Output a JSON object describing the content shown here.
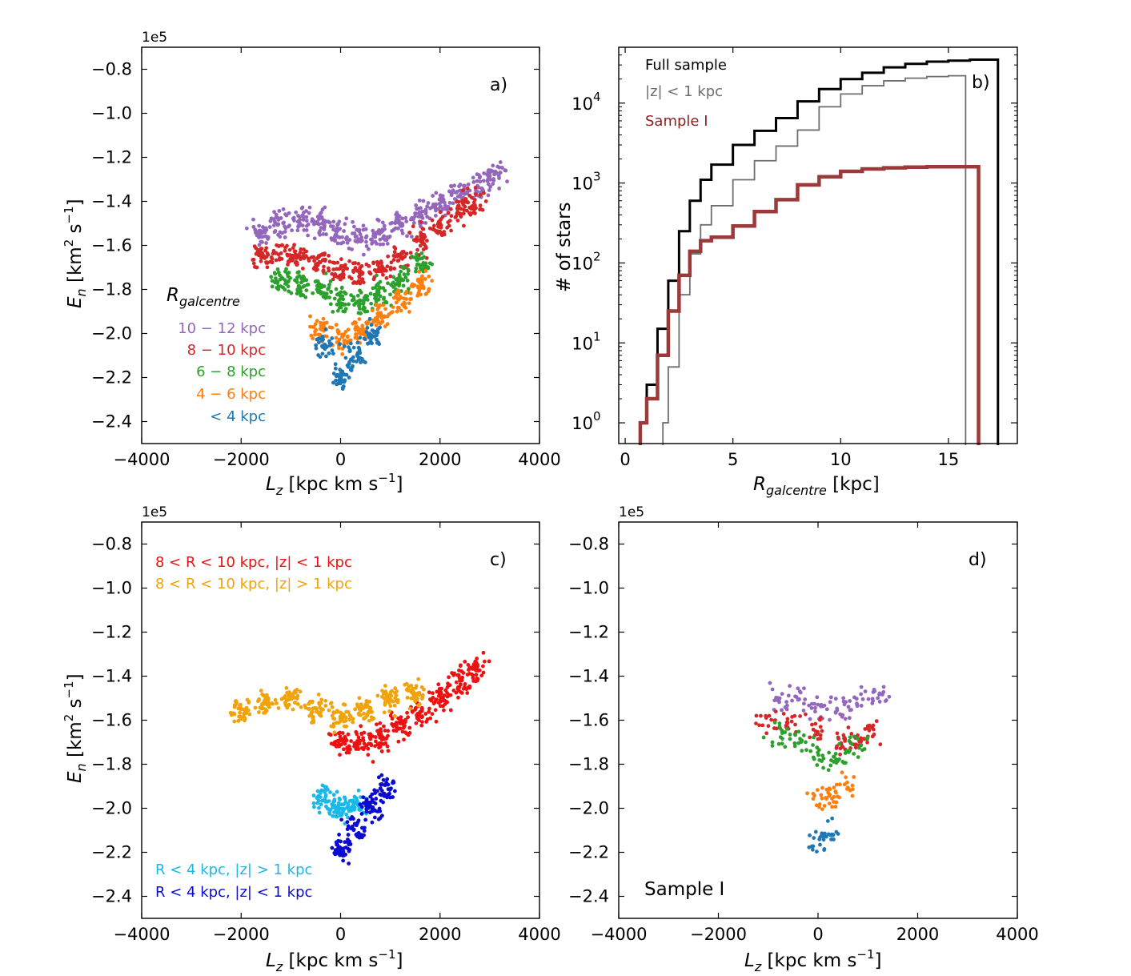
{
  "chart_data": [
    {
      "id": "a",
      "type": "scatter",
      "panel_label": "a)",
      "offset_text": "1e5",
      "xlabel": "L",
      "xlabel_sub": "z",
      "xlabel_units": " [kpc km s",
      "xlabel_exp": "−1",
      "ylabel": "E",
      "ylabel_sub": "n",
      "ylabel_units": " [km",
      "ylabel_exp": "−1",
      "xlim": [
        -4000,
        4000
      ],
      "ylim": [
        -2.5,
        -0.7
      ],
      "xticks": [
        -4000,
        -2000,
        0,
        2000,
        4000
      ],
      "xticklabels": [
        "−4000",
        "−2000",
        "0",
        "2000",
        "4000"
      ],
      "yticks": [
        -2.4,
        -2.2,
        -2.0,
        -1.8,
        -1.6,
        -1.4,
        -1.2,
        -1.0,
        -0.8
      ],
      "yticklabels": [
        "−2.4",
        "−2.2",
        "−2.0",
        "−1.8",
        "−1.6",
        "−1.4",
        "−1.2",
        "−1.0",
        "−0.8"
      ],
      "legend_title": "R",
      "legend_title_sub": "galcentre",
      "legend_placement": "lower-left",
      "series": [
        {
          "name": "10 − 12 kpc",
          "color": "#9467bd",
          "bins": [
            [
              -1600,
              -1.55
            ],
            [
              -1200,
              -1.5
            ],
            [
              -800,
              -1.48
            ],
            [
              -400,
              -1.5
            ],
            [
              0,
              -1.55
            ],
            [
              400,
              -1.57
            ],
            [
              800,
              -1.55
            ],
            [
              1200,
              -1.5
            ],
            [
              1600,
              -1.46
            ],
            [
              2000,
              -1.42
            ],
            [
              2400,
              -1.37
            ],
            [
              2800,
              -1.33
            ],
            [
              3100,
              -1.28
            ]
          ]
        },
        {
          "name": "8 − 10 kpc",
          "color": "#d62728",
          "bins": [
            [
              -1600,
              -1.65
            ],
            [
              -1200,
              -1.64
            ],
            [
              -800,
              -1.65
            ],
            [
              -400,
              -1.68
            ],
            [
              0,
              -1.72
            ],
            [
              400,
              -1.73
            ],
            [
              800,
              -1.7
            ],
            [
              1200,
              -1.65
            ],
            [
              1600,
              -1.58
            ],
            [
              2000,
              -1.52
            ],
            [
              2400,
              -1.45
            ],
            [
              2700,
              -1.4
            ]
          ]
        },
        {
          "name": "6 − 8 kpc",
          "color": "#2ca02c",
          "bins": [
            [
              -1200,
              -1.75
            ],
            [
              -800,
              -1.78
            ],
            [
              -400,
              -1.8
            ],
            [
              0,
              -1.85
            ],
            [
              400,
              -1.86
            ],
            [
              800,
              -1.82
            ],
            [
              1200,
              -1.75
            ],
            [
              1600,
              -1.68
            ]
          ]
        },
        {
          "name": "4 − 6 kpc",
          "color": "#ff7f0e",
          "bins": [
            [
              -400,
              -1.98
            ],
            [
              0,
              -2.02
            ],
            [
              400,
              -1.98
            ],
            [
              800,
              -1.92
            ],
            [
              1200,
              -1.85
            ],
            [
              1600,
              -1.78
            ]
          ]
        },
        {
          "name": "< 4 kpc",
          "color": "#1f77b4",
          "bins": [
            [
              -300,
              -2.05
            ],
            [
              0,
              -2.2
            ],
            [
              300,
              -2.1
            ],
            [
              600,
              -2.0
            ]
          ]
        }
      ]
    },
    {
      "id": "b",
      "type": "line",
      "panel_label": "b)",
      "xlabel": "R",
      "xlabel_sub": "galcentre",
      "xlabel_units": " [kpc]",
      "ylabel": "# of stars",
      "yscale": "log",
      "xlim": [
        -0.3,
        18.2
      ],
      "ylim": [
        0.55,
        50000
      ],
      "xticks": [
        0,
        5,
        10,
        15
      ],
      "xticklabels": [
        "0",
        "5",
        "10",
        "15"
      ],
      "yticks": [
        1,
        10,
        100,
        1000,
        10000
      ],
      "ytick_base": "10",
      "ytick_exps": [
        "0",
        "1",
        "2",
        "3",
        "4"
      ],
      "series": [
        {
          "name": "Full sample",
          "color": "#000000",
          "x": [
            0.7,
            1.0,
            1.5,
            2.0,
            2.5,
            3,
            3.5,
            4,
            5,
            6,
            7,
            8,
            9,
            10,
            11,
            12,
            13,
            14,
            15,
            16,
            16.5,
            17.3
          ],
          "y": [
            1,
            3,
            15,
            60,
            250,
            600,
            1100,
            1700,
            3000,
            4500,
            6500,
            10500,
            15000,
            20000,
            24000,
            28000,
            31000,
            33000,
            34000,
            35000,
            35000,
            35000
          ]
        },
        {
          "name": "|z| < 1 kpc",
          "color": "#6e6e6e",
          "x": [
            1.75,
            2.0,
            2.5,
            3,
            3.5,
            4,
            5,
            6,
            7,
            8,
            9,
            10,
            11,
            12,
            13,
            14,
            15,
            15.8
          ],
          "y": [
            1,
            5,
            40,
            130,
            300,
            520,
            1100,
            1900,
            2900,
            4600,
            9000,
            13000,
            16500,
            19000,
            20500,
            21500,
            22000,
            22000
          ]
        },
        {
          "name": "Sample I",
          "color": "#9c3a3a",
          "x": [
            0.7,
            1.0,
            1.5,
            2.0,
            2.5,
            3,
            3.5,
            4,
            5,
            6,
            7,
            8,
            9,
            10,
            11,
            12,
            13,
            14,
            15,
            16,
            16.4
          ],
          "y": [
            1,
            2,
            7,
            25,
            70,
            140,
            190,
            210,
            290,
            440,
            620,
            950,
            1200,
            1400,
            1500,
            1550,
            1580,
            1600,
            1600,
            1600,
            1600
          ]
        }
      ]
    },
    {
      "id": "c",
      "type": "scatter",
      "panel_label": "c)",
      "offset_text": "1e5",
      "xlabel": "L",
      "xlabel_sub": "z",
      "xlabel_units": " [kpc km s",
      "xlabel_exp": "−1",
      "ylabel": "E",
      "ylabel_sub": "n",
      "ylabel_units": " [km",
      "ylabel_exp": "−1",
      "xlim": [
        -4000,
        4000
      ],
      "ylim": [
        -2.5,
        -0.7
      ],
      "xticks": [
        -4000,
        -2000,
        0,
        2000,
        4000
      ],
      "xticklabels": [
        "−4000",
        "−2000",
        "0",
        "2000",
        "4000"
      ],
      "yticks": [
        -2.4,
        -2.2,
        -2.0,
        -1.8,
        -1.6,
        -1.4,
        -1.2,
        -1.0,
        -0.8
      ],
      "yticklabels": [
        "−2.4",
        "−2.2",
        "−2.0",
        "−1.8",
        "−1.6",
        "−1.4",
        "−1.2",
        "−1.0",
        "−0.8"
      ],
      "series": [
        {
          "name": "8 < R < 10 kpc, |z| < 1 kpc",
          "color": "#ee1111",
          "legend_placement": "upper-left",
          "bins": [
            [
              0,
              -1.7
            ],
            [
              400,
              -1.7
            ],
            [
              800,
              -1.68
            ],
            [
              1200,
              -1.63
            ],
            [
              1600,
              -1.57
            ],
            [
              2000,
              -1.5
            ],
            [
              2400,
              -1.43
            ],
            [
              2700,
              -1.37
            ]
          ]
        },
        {
          "name": "8 < R < 10 kpc, |z| > 1 kpc",
          "color": "#f0a30a",
          "legend_placement": "upper-left",
          "bins": [
            [
              -2000,
              -1.55
            ],
            [
              -1500,
              -1.52
            ],
            [
              -1000,
              -1.5
            ],
            [
              -500,
              -1.55
            ],
            [
              0,
              -1.58
            ],
            [
              500,
              -1.55
            ],
            [
              1000,
              -1.5
            ],
            [
              1500,
              -1.48
            ]
          ]
        },
        {
          "name": "R < 4 kpc, |z| > 1 kpc",
          "color": "#19b8e8",
          "legend_placement": "lower-left",
          "bins": [
            [
              -300,
              -1.95
            ],
            [
              0,
              -2.0
            ],
            [
              300,
              -1.98
            ]
          ]
        },
        {
          "name": "R < 4 kpc, |z| < 1 kpc",
          "color": "#0a0ad0",
          "legend_placement": "lower-left",
          "bins": [
            [
              0,
              -2.2
            ],
            [
              300,
              -2.1
            ],
            [
              600,
              -2.0
            ],
            [
              900,
              -1.9
            ]
          ]
        }
      ]
    },
    {
      "id": "d",
      "type": "scatter",
      "panel_label": "d)",
      "offset_text": "1e5",
      "annotation": "Sample I",
      "xlabel": "L",
      "xlabel_sub": "z",
      "xlabel_units": " [kpc km s",
      "xlabel_exp": "−1",
      "xlim": [
        -4000,
        4000
      ],
      "ylim": [
        -2.5,
        -0.7
      ],
      "xticks": [
        -4000,
        -2000,
        0,
        2000,
        4000
      ],
      "xticklabels": [
        "−4000",
        "−2000",
        "0",
        "2000",
        "4000"
      ],
      "yticks": [
        -2.4,
        -2.2,
        -2.0,
        -1.8,
        -1.6,
        -1.4,
        -1.2,
        -1.0,
        -0.8
      ],
      "yticklabels": [
        "−2.4",
        "−2.2",
        "−2.0",
        "−1.8",
        "−1.6",
        "−1.4",
        "−1.2",
        "−1.0",
        "−0.8"
      ],
      "series": [
        {
          "name": "10 − 12 kpc",
          "color": "#9467bd",
          "bins": [
            [
              -800,
              -1.5
            ],
            [
              -400,
              -1.5
            ],
            [
              0,
              -1.55
            ],
            [
              400,
              -1.55
            ],
            [
              800,
              -1.5
            ],
            [
              1200,
              -1.5
            ]
          ]
        },
        {
          "name": "8 − 10 kpc",
          "color": "#d62728",
          "bins": [
            [
              -1000,
              -1.6
            ],
            [
              -500,
              -1.62
            ],
            [
              0,
              -1.65
            ],
            [
              400,
              -1.7
            ],
            [
              800,
              -1.68
            ],
            [
              1100,
              -1.65
            ]
          ]
        },
        {
          "name": "6 − 8 kpc",
          "color": "#2ca02c",
          "bins": [
            [
              -800,
              -1.65
            ],
            [
              -400,
              -1.7
            ],
            [
              0,
              -1.75
            ],
            [
              400,
              -1.78
            ],
            [
              800,
              -1.72
            ]
          ]
        },
        {
          "name": "4 − 6 kpc",
          "color": "#ff7f0e",
          "bins": [
            [
              0,
              -1.95
            ],
            [
              300,
              -1.95
            ],
            [
              600,
              -1.9
            ]
          ]
        },
        {
          "name": "< 4 kpc",
          "color": "#1f77b4",
          "bins": [
            [
              0,
              -2.15
            ],
            [
              250,
              -2.1
            ]
          ]
        }
      ]
    }
  ]
}
